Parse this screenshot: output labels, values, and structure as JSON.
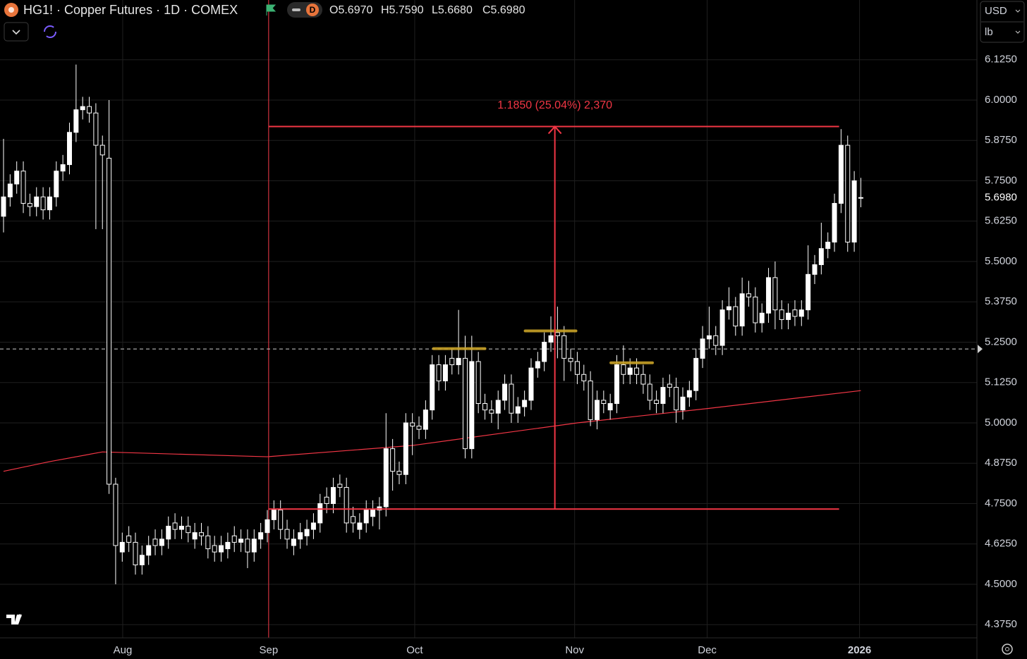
{
  "header": {
    "title": "HG1! · Copper Futures · 1D · COMEX",
    "interval": "D",
    "ohlc_labels": [
      "O5.6970",
      "H5.7590",
      "L5.6680",
      "C5.6980"
    ],
    "currency": "USD",
    "unit": "lb"
  },
  "chart_data": {
    "type": "candlestick",
    "open": [
      5.64,
      5.7,
      5.74,
      5.78,
      5.68,
      5.67,
      5.7,
      5.66,
      5.7,
      5.78,
      5.8,
      5.9,
      5.97,
      5.98,
      5.96,
      5.86,
      5.82,
      4.81,
      4.6,
      4.65,
      4.63,
      4.56,
      4.59,
      4.64,
      4.62,
      4.64,
      4.69,
      4.67,
      4.68,
      4.64,
      4.66,
      4.65,
      4.62,
      4.6,
      4.61,
      4.65,
      4.63,
      4.64,
      4.6,
      4.64,
      4.66,
      4.7,
      4.73,
      4.67,
      4.62,
      4.64,
      4.65,
      4.67,
      4.69,
      4.77,
      4.75,
      4.81,
      4.8,
      4.71,
      4.67,
      4.69,
      4.71,
      4.73,
      4.74,
      4.92,
      4.85,
      4.84,
      5.0,
      4.99,
      4.98,
      5.04,
      5.18,
      5.13,
      5.2,
      5.18,
      5.2,
      4.92,
      5.19,
      5.06,
      5.04,
      5.03,
      5.07,
      5.12,
      5.03,
      5.05,
      5.07,
      5.17,
      5.19,
      5.25,
      5.28,
      5.27,
      5.2,
      5.19,
      5.15,
      5.13,
      5.01,
      5.07,
      5.04,
      5.06,
      5.18,
      5.15,
      5.17,
      5.15,
      5.12,
      5.07,
      5.06,
      5.12,
      5.11,
      5.04,
      5.08,
      5.1,
      5.2,
      5.26,
      5.27,
      5.24,
      5.35,
      5.36,
      5.3,
      5.4,
      5.39,
      5.31,
      5.34,
      5.45,
      5.35,
      5.32,
      5.35,
      5.33,
      5.35,
      5.46,
      5.49,
      5.54,
      5.56,
      5.68,
      5.86,
      5.56,
      5.697
    ],
    "high": [
      5.88,
      5.77,
      5.81,
      5.81,
      5.71,
      5.73,
      5.73,
      5.73,
      5.81,
      5.83,
      5.93,
      6.11,
      6.01,
      6.01,
      5.99,
      5.89,
      6.0,
      4.83,
      4.66,
      4.68,
      4.66,
      4.62,
      4.65,
      4.67,
      4.67,
      4.71,
      4.72,
      4.71,
      4.71,
      4.69,
      4.69,
      4.68,
      4.65,
      4.65,
      4.66,
      4.68,
      4.67,
      4.67,
      4.67,
      4.69,
      4.73,
      4.76,
      4.76,
      4.7,
      4.67,
      4.69,
      4.7,
      4.72,
      4.78,
      4.8,
      4.83,
      4.84,
      4.83,
      4.74,
      4.72,
      4.76,
      4.76,
      4.77,
      5.03,
      4.95,
      4.88,
      5.03,
      5.03,
      5.02,
      5.07,
      5.21,
      5.21,
      5.21,
      5.23,
      5.35,
      5.27,
      5.27,
      5.22,
      5.09,
      5.07,
      5.1,
      5.15,
      5.15,
      5.08,
      5.1,
      5.2,
      5.22,
      5.28,
      5.33,
      5.36,
      5.3,
      5.23,
      5.22,
      5.18,
      5.16,
      5.1,
      5.1,
      5.09,
      5.21,
      5.24,
      5.2,
      5.2,
      5.18,
      5.15,
      5.1,
      5.14,
      5.15,
      5.14,
      5.11,
      5.13,
      5.23,
      5.3,
      5.36,
      5.3,
      5.38,
      5.42,
      5.39,
      5.45,
      5.44,
      5.42,
      5.37,
      5.48,
      5.5,
      5.38,
      5.37,
      5.38,
      5.38,
      5.55,
      5.52,
      5.62,
      5.59,
      5.71,
      5.91,
      5.89,
      5.78,
      5.759
    ],
    "low": [
      5.59,
      5.67,
      5.71,
      5.65,
      5.64,
      5.64,
      5.63,
      5.63,
      5.67,
      5.75,
      5.77,
      5.87,
      5.94,
      5.93,
      5.6,
      5.6,
      4.78,
      4.5,
      4.57,
      4.6,
      4.53,
      4.53,
      4.56,
      4.59,
      4.59,
      4.61,
      4.64,
      4.64,
      4.63,
      4.61,
      4.62,
      4.58,
      4.57,
      4.57,
      4.58,
      4.6,
      4.6,
      4.55,
      4.57,
      4.61,
      4.63,
      4.67,
      4.64,
      4.61,
      4.59,
      4.61,
      4.62,
      4.64,
      4.66,
      4.72,
      4.72,
      4.77,
      4.66,
      4.66,
      4.64,
      4.66,
      4.68,
      4.67,
      4.71,
      4.79,
      4.81,
      4.81,
      4.9,
      4.95,
      4.95,
      5.01,
      5.1,
      5.1,
      5.15,
      5.15,
      4.89,
      4.89,
      5.03,
      5.01,
      5.0,
      4.98,
      5.04,
      5.0,
      5.0,
      5.02,
      5.04,
      5.14,
      5.16,
      5.22,
      5.2,
      5.13,
      5.16,
      5.12,
      5.1,
      4.99,
      4.98,
      5.03,
      5.01,
      5.03,
      5.12,
      5.12,
      5.12,
      5.09,
      5.04,
      5.03,
      5.03,
      5.08,
      5.0,
      5.01,
      5.05,
      5.07,
      5.17,
      5.23,
      5.21,
      5.21,
      5.32,
      5.27,
      5.27,
      5.36,
      5.28,
      5.28,
      5.31,
      5.29,
      5.29,
      5.29,
      5.3,
      5.3,
      5.32,
      5.43,
      5.46,
      5.51,
      5.53,
      5.65,
      5.53,
      5.53,
      5.668
    ],
    "close": [
      5.7,
      5.74,
      5.78,
      5.68,
      5.67,
      5.7,
      5.66,
      5.7,
      5.78,
      5.8,
      5.9,
      5.97,
      5.98,
      5.96,
      5.86,
      5.83,
      4.81,
      4.62,
      4.63,
      4.63,
      4.56,
      4.59,
      4.62,
      4.62,
      4.64,
      4.68,
      4.67,
      4.68,
      4.66,
      4.66,
      4.65,
      4.61,
      4.6,
      4.62,
      4.63,
      4.63,
      4.64,
      4.6,
      4.64,
      4.66,
      4.7,
      4.73,
      4.67,
      4.64,
      4.64,
      4.66,
      4.67,
      4.69,
      4.75,
      4.75,
      4.8,
      4.8,
      4.69,
      4.69,
      4.69,
      4.73,
      4.73,
      4.74,
      4.92,
      4.85,
      4.84,
      5.0,
      4.99,
      4.98,
      5.04,
      5.18,
      5.13,
      5.18,
      5.18,
      5.2,
      4.92,
      5.19,
      5.06,
      5.04,
      5.03,
      5.07,
      5.12,
      5.03,
      5.05,
      5.07,
      5.17,
      5.19,
      5.25,
      5.27,
      5.27,
      5.2,
      5.19,
      5.15,
      5.13,
      5.01,
      5.07,
      5.06,
      5.06,
      5.18,
      5.15,
      5.17,
      5.15,
      5.12,
      5.07,
      5.06,
      5.11,
      5.11,
      5.04,
      5.08,
      5.1,
      5.2,
      5.26,
      5.27,
      5.24,
      5.35,
      5.36,
      5.3,
      5.4,
      5.39,
      5.31,
      5.34,
      5.45,
      5.35,
      5.32,
      5.34,
      5.33,
      5.35,
      5.46,
      5.49,
      5.54,
      5.56,
      5.68,
      5.86,
      5.56,
      5.75,
      5.698
    ],
    "color": "#ffffff",
    "xlim": [
      -0.535,
      147.6
    ],
    "xticks": [
      {
        "value": 18.07,
        "label": "Aug"
      },
      {
        "value": 40.2,
        "label": "Sep"
      },
      {
        "value": 62.35,
        "label": "Oct"
      },
      {
        "value": 86.6,
        "label": "Nov"
      },
      {
        "value": 106.7,
        "label": "Dec"
      },
      {
        "value": 129.8,
        "label": "2026"
      }
    ],
    "ylim": [
      4.334,
      6.31
    ],
    "yticks": [
      {
        "value": 6.125,
        "label": "6.1250"
      },
      {
        "value": 6.0,
        "label": "6.0000"
      },
      {
        "value": 5.875,
        "label": "5.8750"
      },
      {
        "value": 5.75,
        "label": "5.7500"
      },
      {
        "value": 5.625,
        "label": "5.6250"
      },
      {
        "value": 5.5,
        "label": "5.5000"
      },
      {
        "value": 5.375,
        "label": "5.3750"
      },
      {
        "value": 5.25,
        "label": "5.2500"
      },
      {
        "value": 5.125,
        "label": "5.1250"
      },
      {
        "value": 5.0,
        "label": "5.0000"
      },
      {
        "value": 4.875,
        "label": "4.8750"
      },
      {
        "value": 4.75,
        "label": "4.7500"
      },
      {
        "value": 4.625,
        "label": "4.6250"
      },
      {
        "value": 4.5,
        "label": "4.5000"
      },
      {
        "value": 4.375,
        "label": "4.3750"
      }
    ],
    "last_price_label": "5.6980",
    "grid": true,
    "moving_average": {
      "color": "#f23645",
      "x": [
        0,
        7,
        15,
        40,
        62,
        87,
        107,
        130
      ],
      "values": [
        4.85,
        4.88,
        4.91,
        4.895,
        4.93,
        5.0,
        5.045,
        5.1
      ]
    },
    "measure": {
      "label": "1.1850 (25.04%) 2,370",
      "from": 4.733,
      "to": 5.918,
      "start": 40.2,
      "end": 126.7,
      "arrow_at": 83.6,
      "color": "#f23645"
    },
    "vertical_line": 40.2,
    "crosshair": 5.229,
    "highlights": {
      "color": "#c9a227",
      "items": [
        {
          "value": 5.23,
          "from": 65.2,
          "to": 73.0
        },
        {
          "value": 5.285,
          "from": 79.1,
          "to": 86.8
        },
        {
          "value": 5.186,
          "from": 92.1,
          "to": 98.4
        }
      ]
    }
  }
}
